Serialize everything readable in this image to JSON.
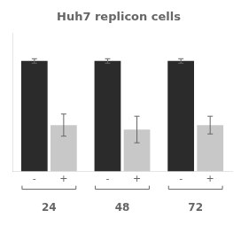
{
  "chart_data": {
    "type": "bar",
    "title": "Huh7 replicon cells",
    "categories": [
      "24",
      "48",
      "72"
    ],
    "series": [
      {
        "name": "-",
        "color": "#2b2b2b",
        "values": [
          1.0,
          1.0,
          1.0
        ],
        "errors": [
          0.02,
          0.02,
          0.02
        ]
      },
      {
        "name": "+",
        "color": "#c8c8c8",
        "values": [
          0.42,
          0.38,
          0.42
        ],
        "errors": [
          0.1,
          0.12,
          0.08
        ]
      }
    ],
    "ylim": [
      0,
      1.25
    ],
    "yticks": [],
    "grid": false,
    "tick_labels": "x"
  }
}
